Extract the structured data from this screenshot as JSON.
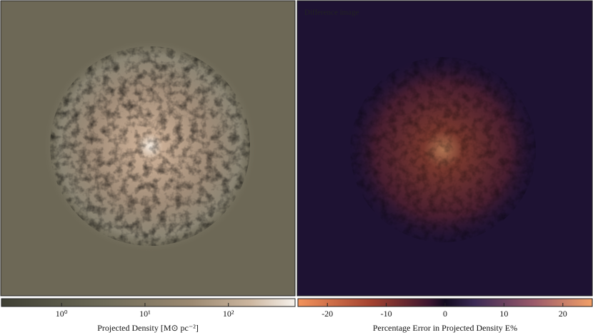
{
  "chart_data": [
    {
      "type": "image",
      "colorbar_label": "Projected Density [M⊙ pc⁻²]",
      "log_scale": true,
      "xlim": [
        0.19,
        630
      ],
      "xticks": [
        {
          "value": 1,
          "label": "10⁰"
        },
        {
          "value": 10,
          "label": "10¹"
        },
        {
          "value": 100,
          "label": "10²"
        }
      ]
    },
    {
      "type": "image",
      "annotation": "Difference image",
      "colorbar_label": "Percentage Error in Projected Density E%",
      "log_scale": false,
      "xlim": [
        -25,
        25
      ],
      "xticks": [
        -20,
        -10,
        0,
        10,
        20
      ]
    }
  ]
}
